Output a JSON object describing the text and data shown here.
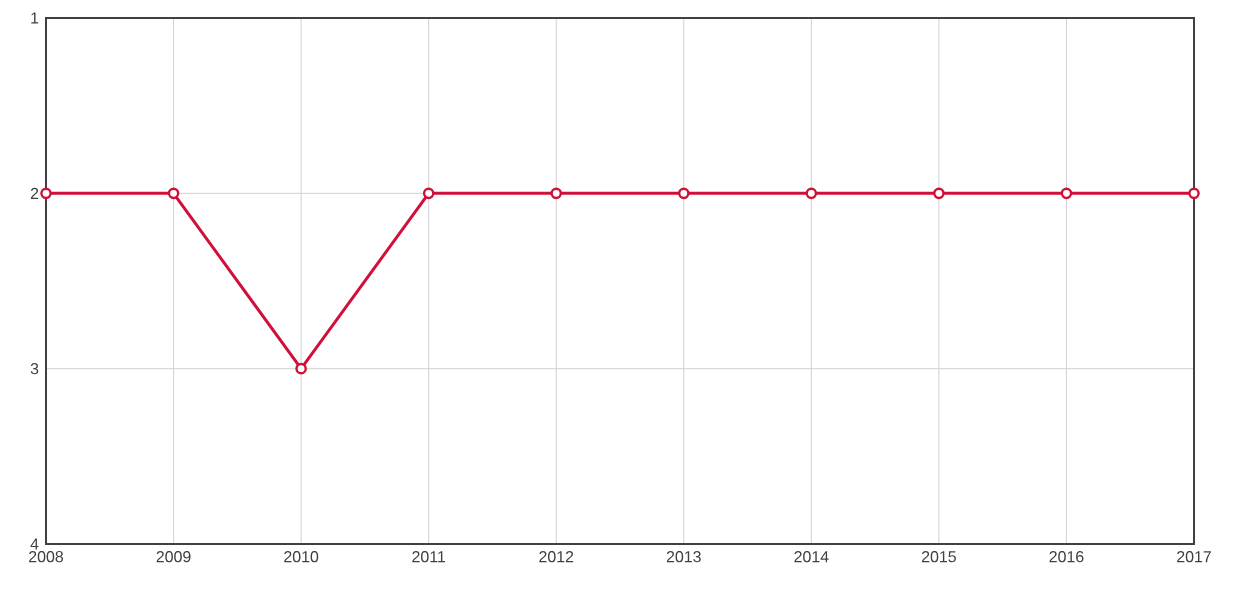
{
  "chart_data": {
    "type": "line",
    "x": [
      2008,
      2009,
      2010,
      2011,
      2012,
      2013,
      2014,
      2015,
      2016,
      2017
    ],
    "series": [
      {
        "color": "#d0103a",
        "values": [
          2,
          2,
          3,
          2,
          2,
          2,
          2,
          2,
          2,
          2
        ]
      }
    ],
    "xlim": [
      2008,
      2017
    ],
    "xticks": [
      2008,
      2009,
      2010,
      2011,
      2012,
      2013,
      2014,
      2015,
      2016,
      2017
    ],
    "ylim": [
      4,
      1
    ],
    "yticks": [
      1,
      2,
      3,
      4
    ],
    "grid": true,
    "marker": "circle",
    "line_style": "solid"
  }
}
